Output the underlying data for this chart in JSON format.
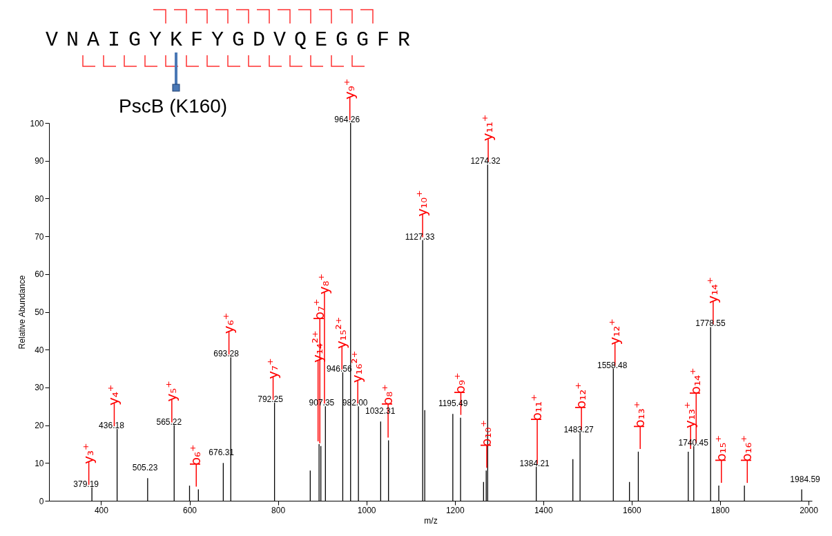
{
  "chart_data": {
    "type": "bar",
    "xlabel": "m/z",
    "ylabel": "Relative Abundance",
    "color": "#000000",
    "x": [
      379.19,
      436.18,
      505.23,
      565.22,
      600,
      620,
      676.31,
      693.28,
      792.25,
      873,
      893,
      897,
      907.35,
      946.56,
      964.26,
      982.0,
      1032.31,
      1050,
      1127.33,
      1132,
      1195.49,
      1213,
      1265,
      1271,
      1274.32,
      1384.21,
      1467,
      1483.27,
      1558.48,
      1595,
      1615,
      1728,
      1740.45,
      1778.55,
      1797,
      1855,
      1984.59
    ],
    "values": [
      3.5,
      19,
      6,
      20,
      4,
      3,
      10,
      38,
      26,
      8,
      15,
      14.5,
      25,
      34,
      100,
      25,
      21,
      16,
      69,
      24,
      23,
      22,
      5,
      8,
      89,
      9,
      11,
      18,
      35,
      5,
      13,
      13,
      14.5,
      46,
      4,
      4,
      3
    ],
    "xlim": [
      290,
      2000
    ],
    "xticks": [
      400,
      600,
      800,
      1000,
      1200,
      1400,
      1600,
      1800,
      2000
    ],
    "ylim": [
      0,
      100
    ],
    "yticks": [
      0,
      10,
      20,
      30,
      40,
      50,
      60,
      70,
      80,
      90,
      100
    ],
    "grid": false,
    "annotations": [
      "VNAIGYKFYGDVQEGGFR",
      "PscB (K160)",
      {
        "text": "379.19",
        "x": 379.19,
        "y": 3.5
      },
      {
        "text": "436.18",
        "x": 436.18,
        "y": 19
      },
      {
        "text": "505.23",
        "x": 505.23,
        "y": 6
      },
      {
        "text": "565.22",
        "x": 565.22,
        "y": 20
      },
      {
        "text": "676.31",
        "x": 676.31,
        "y": 10
      },
      {
        "text": "693.28",
        "x": 693.28,
        "y": 38
      },
      {
        "text": "792.25",
        "x": 792.25,
        "y": 26
      },
      {
        "text": "907.35",
        "x": 907.35,
        "y": 25
      },
      {
        "text": "946.56",
        "x": 946.56,
        "y": 34
      },
      {
        "text": "964.26",
        "x": 964.26,
        "y": 100
      },
      {
        "text": "982.00",
        "x": 982.0,
        "y": 25
      },
      {
        "text": "1032.31",
        "x": 1032.31,
        "y": 21
      },
      {
        "text": "1127.33",
        "x": 1127.33,
        "y": 69
      },
      {
        "text": "1195.49",
        "x": 1195.49,
        "y": 23
      },
      {
        "text": "1274.32",
        "x": 1274.32,
        "y": 89
      },
      {
        "text": "1384.21",
        "x": 1384.21,
        "y": 9
      },
      {
        "text": "1483.27",
        "x": 1483.27,
        "y": 18
      },
      {
        "text": "1558.48",
        "x": 1558.48,
        "y": 35
      },
      {
        "text": "1740.45",
        "x": 1740.45,
        "y": 14.5
      },
      {
        "text": "1778.55",
        "x": 1778.55,
        "y": 46
      },
      {
        "text": "1984.59",
        "x": 1984.59,
        "y": 3
      },
      {
        "text": "y₃⁺",
        "x": 379.19,
        "y": 3.5
      },
      {
        "text": "y₄⁺",
        "x": 436.18,
        "y": 19
      },
      {
        "text": "y₅⁺",
        "x": 565.22,
        "y": 20
      },
      {
        "text": "b₆⁺",
        "x": 620,
        "y": 3
      },
      {
        "text": "y₆⁺",
        "x": 693.28,
        "y": 38
      },
      {
        "text": "y₇⁺",
        "x": 792.25,
        "y": 26
      },
      {
        "text": "y₁₄²⁺",
        "x": 893,
        "y": 15
      },
      {
        "text": "b₇⁺",
        "x": 897,
        "y": 14.5
      },
      {
        "text": "y₈⁺",
        "x": 907.35,
        "y": 25
      },
      {
        "text": "y₁₅²⁺",
        "x": 946.56,
        "y": 34
      },
      {
        "text": "y₉⁺",
        "x": 964.26,
        "y": 100
      },
      {
        "text": "y₁₆²⁺",
        "x": 982.0,
        "y": 25
      },
      {
        "text": "b₈⁺",
        "x": 1050,
        "y": 16
      },
      {
        "text": "y₁₀⁺",
        "x": 1127.33,
        "y": 69
      },
      {
        "text": "b₉⁺",
        "x": 1213,
        "y": 22
      },
      {
        "text": "b₁₀⁺",
        "x": 1271,
        "y": 8
      },
      {
        "text": "y₁₁⁺",
        "x": 1274.32,
        "y": 89
      },
      {
        "text": "b₁₁⁺",
        "x": 1384.21,
        "y": 9
      },
      {
        "text": "b₁₂⁺",
        "x": 1483.27,
        "y": 18
      },
      {
        "text": "y₁₂⁺",
        "x": 1558.48,
        "y": 35
      },
      {
        "text": "b₁₃⁺",
        "x": 1615,
        "y": 13
      },
      {
        "text": "y₁₃⁺",
        "x": 1728,
        "y": 13
      },
      {
        "text": "b₁₄⁺",
        "x": 1740.45,
        "y": 14.5
      },
      {
        "text": "y₁₄⁺",
        "x": 1778.55,
        "y": 46
      },
      {
        "text": "b₁₅⁺",
        "x": 1797,
        "y": 4
      },
      {
        "text": "b₁₆⁺",
        "x": 1855,
        "y": 4
      }
    ]
  }
}
